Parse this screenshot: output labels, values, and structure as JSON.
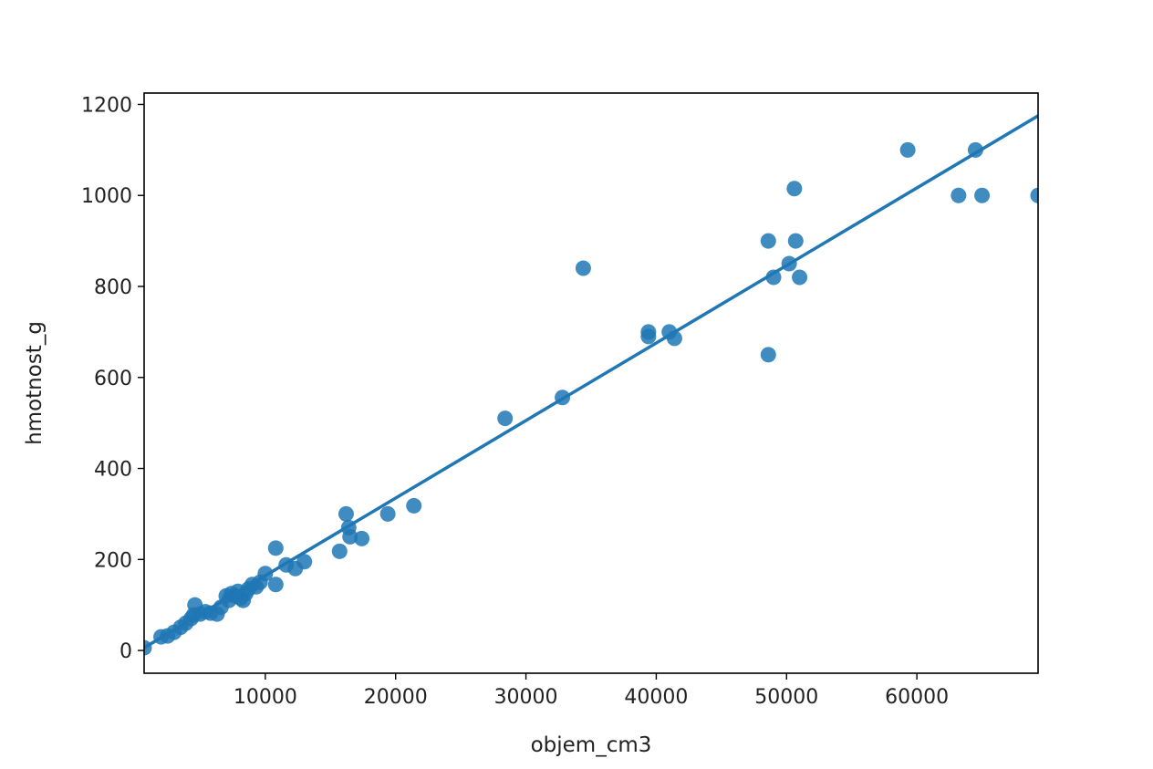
{
  "chart_data": {
    "type": "scatter",
    "xlabel": "objem_cm3",
    "ylabel": "hmotnost_g",
    "xlim": [
      700,
      69300
    ],
    "ylim": [
      -50,
      1225
    ],
    "xticks": [
      10000,
      20000,
      30000,
      40000,
      50000,
      60000
    ],
    "yticks": [
      0,
      200,
      400,
      600,
      800,
      1000,
      1200
    ],
    "grid": false,
    "legend": "none",
    "color": "#1f77b4",
    "points": [
      {
        "x": 700,
        "y": 6
      },
      {
        "x": 2000,
        "y": 30
      },
      {
        "x": 2500,
        "y": 32
      },
      {
        "x": 3000,
        "y": 40
      },
      {
        "x": 3500,
        "y": 51
      },
      {
        "x": 3900,
        "y": 60
      },
      {
        "x": 4300,
        "y": 70
      },
      {
        "x": 4500,
        "y": 78
      },
      {
        "x": 4600,
        "y": 100
      },
      {
        "x": 5000,
        "y": 80
      },
      {
        "x": 5400,
        "y": 85
      },
      {
        "x": 5800,
        "y": 82
      },
      {
        "x": 6300,
        "y": 80
      },
      {
        "x": 6600,
        "y": 95
      },
      {
        "x": 7000,
        "y": 120
      },
      {
        "x": 7200,
        "y": 110
      },
      {
        "x": 7400,
        "y": 125
      },
      {
        "x": 7700,
        "y": 120
      },
      {
        "x": 7900,
        "y": 130
      },
      {
        "x": 8100,
        "y": 115
      },
      {
        "x": 8300,
        "y": 110
      },
      {
        "x": 8500,
        "y": 125
      },
      {
        "x": 8700,
        "y": 135
      },
      {
        "x": 9000,
        "y": 145
      },
      {
        "x": 9300,
        "y": 140
      },
      {
        "x": 9600,
        "y": 150
      },
      {
        "x": 10000,
        "y": 169
      },
      {
        "x": 10800,
        "y": 145
      },
      {
        "x": 10800,
        "y": 225
      },
      {
        "x": 11600,
        "y": 188
      },
      {
        "x": 12300,
        "y": 180
      },
      {
        "x": 13000,
        "y": 195
      },
      {
        "x": 15700,
        "y": 218
      },
      {
        "x": 16200,
        "y": 300
      },
      {
        "x": 16400,
        "y": 270
      },
      {
        "x": 16500,
        "y": 250
      },
      {
        "x": 17400,
        "y": 246
      },
      {
        "x": 19400,
        "y": 300
      },
      {
        "x": 21400,
        "y": 318
      },
      {
        "x": 28400,
        "y": 510
      },
      {
        "x": 32800,
        "y": 556
      },
      {
        "x": 34400,
        "y": 840
      },
      {
        "x": 39400,
        "y": 700
      },
      {
        "x": 39400,
        "y": 690
      },
      {
        "x": 41000,
        "y": 700
      },
      {
        "x": 41400,
        "y": 686
      },
      {
        "x": 48600,
        "y": 900
      },
      {
        "x": 48600,
        "y": 650
      },
      {
        "x": 49000,
        "y": 820
      },
      {
        "x": 50200,
        "y": 850
      },
      {
        "x": 50600,
        "y": 1015
      },
      {
        "x": 50700,
        "y": 900
      },
      {
        "x": 51000,
        "y": 820
      },
      {
        "x": 59300,
        "y": 1100
      },
      {
        "x": 63200,
        "y": 1000
      },
      {
        "x": 64500,
        "y": 1100
      },
      {
        "x": 65000,
        "y": 1000
      },
      {
        "x": 69300,
        "y": 1000
      }
    ],
    "regression_line": {
      "x": [
        700,
        69300
      ],
      "y": [
        6,
        1175
      ]
    }
  }
}
